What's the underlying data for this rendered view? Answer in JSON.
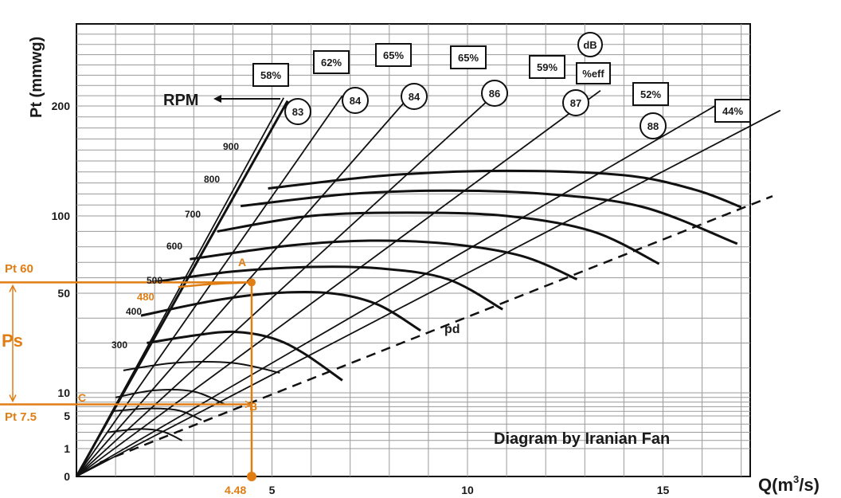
{
  "chart_data": {
    "type": "line",
    "title": "",
    "xlabel_main": "Q(m",
    "xlabel_sup": "3",
    "xlabel_end": "/s)",
    "ylabel": "Pt (mmwg)",
    "credit": "Diagram by Iranian Fan",
    "x_ticks": [
      "5",
      "10",
      "15"
    ],
    "x_tick_values": [
      5,
      10,
      15
    ],
    "y_ticks": [
      "0",
      "1",
      "5",
      "10",
      "50",
      "100",
      "200"
    ],
    "y_tick_values": [
      0,
      1,
      5,
      10,
      50,
      100,
      200
    ],
    "grid": true,
    "rpm_label": "RPM",
    "rpm_curves": [
      {
        "rpm": "300",
        "points": [
          [
            1.8,
            30
          ],
          [
            3,
            33
          ],
          [
            4,
            34.5
          ],
          [
            5,
            32
          ],
          [
            5.8,
            26
          ],
          [
            6.8,
            15
          ]
        ]
      },
      {
        "rpm": "400",
        "points": [
          [
            1.65,
            41
          ],
          [
            3.5,
            47
          ],
          [
            5,
            50
          ],
          [
            6.5,
            50
          ],
          [
            7.7,
            45.5
          ],
          [
            8.8,
            35
          ]
        ]
      },
      {
        "rpm": "500",
        "points": [
          [
            1.9,
            57
          ],
          [
            4,
            64
          ],
          [
            6,
            67
          ],
          [
            7.8,
            66
          ],
          [
            9.5,
            59
          ],
          [
            10.9,
            43.5
          ]
        ]
      },
      {
        "rpm": "600",
        "points": [
          [
            2.9,
            72
          ],
          [
            5.5,
            81
          ],
          [
            7.5,
            84
          ],
          [
            9.5,
            82
          ],
          [
            11.4,
            74
          ],
          [
            12.8,
            59
          ]
        ]
      },
      {
        "rpm": "700",
        "points": [
          [
            3.6,
            90
          ],
          [
            6,
            100
          ],
          [
            8.5,
            103
          ],
          [
            11,
            100
          ],
          [
            13.2,
            90
          ],
          [
            14.9,
            69
          ]
        ]
      },
      {
        "rpm": "800",
        "points": [
          [
            4.2,
            109
          ],
          [
            7,
            120
          ],
          [
            9.5,
            123
          ],
          [
            12,
            120
          ],
          [
            14.5,
            108
          ],
          [
            16.9,
            82
          ]
        ]
      },
      {
        "rpm": "900",
        "points": [
          [
            4.9,
            125
          ],
          [
            8,
            137
          ],
          [
            11,
            141
          ],
          [
            14,
            137
          ],
          [
            15.8,
            124
          ],
          [
            17,
            108
          ]
        ]
      }
    ],
    "operating_point": {
      "label_A": "A",
      "label_B": "B",
      "label_C": "C",
      "Q": "4.48",
      "Pt_label": "Pt 60",
      "Ps_label": "Ps",
      "Pt2_label": "Pt 7.5",
      "rpm_interp": "480",
      "rpm_interp_points": [
        [
          2.6,
          54
        ],
        [
          3.5,
          56
        ],
        [
          4.48,
          57
        ]
      ]
    },
    "pd_label": "pd",
    "efficiency_labels": [
      "58%",
      "62%",
      "65%",
      "65%",
      "59%",
      "52%",
      "44%"
    ],
    "db_values": [
      "83",
      "84",
      "84",
      "86",
      "87",
      "88"
    ],
    "db_legend": "dB",
    "eff_legend": "%eff",
    "rpm_ticks": [
      "300",
      "400",
      "500",
      "600",
      "700",
      "800",
      "900"
    ]
  }
}
